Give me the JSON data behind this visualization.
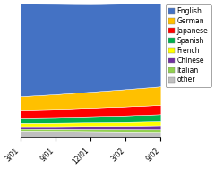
{
  "x_labels": [
    "3/01",
    "9/01",
    "12/01",
    "3/02",
    "9/02"
  ],
  "x_values": [
    0,
    1,
    2,
    3,
    4
  ],
  "series": {
    "other": [
      4.5,
      4.2,
      4.0,
      3.8,
      3.5
    ],
    "Italian": [
      1.5,
      1.6,
      1.7,
      1.8,
      2.0
    ],
    "Chinese": [
      2.0,
      2.2,
      2.5,
      2.8,
      3.2
    ],
    "French": [
      2.5,
      2.6,
      2.7,
      2.8,
      3.0
    ],
    "Spanish": [
      4.0,
      4.2,
      4.5,
      4.8,
      5.2
    ],
    "Japanese": [
      6.0,
      6.2,
      6.5,
      6.8,
      7.0
    ],
    "German": [
      10.0,
      11.0,
      12.0,
      13.0,
      14.0
    ],
    "English": [
      69.5,
      67.8,
      65.6,
      64.2,
      62.1
    ]
  },
  "colors": {
    "English": "#4472C4",
    "German": "#FFC000",
    "Japanese": "#FF0000",
    "Spanish": "#00B050",
    "French": "#FFFF00",
    "Chinese": "#7030A0",
    "Italian": "#92D050",
    "other": "#BFBFBF"
  },
  "legend_order": [
    "English",
    "German",
    "Japanese",
    "Spanish",
    "French",
    "Chinese",
    "Italian",
    "other"
  ],
  "bg_color": "#FFFFFF",
  "plot_bg_color": "#FFFFFF"
}
